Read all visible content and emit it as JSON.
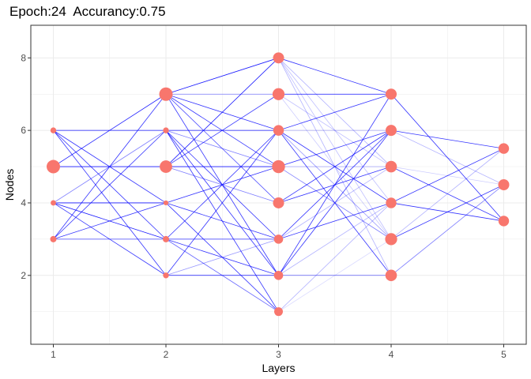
{
  "chart_data": {
    "type": "scatter",
    "title": "Epoch:24  Accurancy:0.75",
    "xlabel": "Layers",
    "ylabel": "Nodes",
    "xlim": [
      0.8,
      5.2
    ],
    "ylim": [
      0.1,
      8.9
    ],
    "x_ticks": [
      "1",
      "2",
      "3",
      "4",
      "5"
    ],
    "y_ticks": [
      "2",
      "4",
      "6",
      "8"
    ],
    "grid": true,
    "colors": {
      "node": "#F8766D",
      "edge": "#0000FF",
      "grid": "#ebebeb",
      "panel_border": "#333333"
    },
    "nodes": [
      {
        "layer": 1,
        "node": 3,
        "size": 0.25
      },
      {
        "layer": 1,
        "node": 4,
        "size": 0.15
      },
      {
        "layer": 1,
        "node": 5,
        "size": 1.0
      },
      {
        "layer": 1,
        "node": 6,
        "size": 0.2
      },
      {
        "layer": 2,
        "node": 2,
        "size": 0.2
      },
      {
        "layer": 2,
        "node": 3,
        "size": 0.25
      },
      {
        "layer": 2,
        "node": 4,
        "size": 0.1
      },
      {
        "layer": 2,
        "node": 5,
        "size": 0.9
      },
      {
        "layer": 2,
        "node": 6,
        "size": 0.2
      },
      {
        "layer": 2,
        "node": 7,
        "size": 1.0
      },
      {
        "layer": 3,
        "node": 1,
        "size": 0.5
      },
      {
        "layer": 3,
        "node": 2,
        "size": 0.55
      },
      {
        "layer": 3,
        "node": 3,
        "size": 0.55
      },
      {
        "layer": 3,
        "node": 4,
        "size": 0.75
      },
      {
        "layer": 3,
        "node": 5,
        "size": 0.95
      },
      {
        "layer": 3,
        "node": 6,
        "size": 0.7
      },
      {
        "layer": 3,
        "node": 7,
        "size": 0.85
      },
      {
        "layer": 3,
        "node": 8,
        "size": 0.75
      },
      {
        "layer": 4,
        "node": 2,
        "size": 0.8
      },
      {
        "layer": 4,
        "node": 3,
        "size": 0.85
      },
      {
        "layer": 4,
        "node": 4,
        "size": 0.7
      },
      {
        "layer": 4,
        "node": 5,
        "size": 0.8
      },
      {
        "layer": 4,
        "node": 6,
        "size": 0.75
      },
      {
        "layer": 4,
        "node": 7,
        "size": 0.75
      },
      {
        "layer": 5,
        "node": 3.5,
        "size": 0.7
      },
      {
        "layer": 5,
        "node": 4.5,
        "size": 0.75
      },
      {
        "layer": 5,
        "node": 5.5,
        "size": 0.7
      }
    ],
    "edges": [
      {
        "from": [
          1,
          6
        ],
        "to": [
          2,
          6
        ],
        "weight": 0.9
      },
      {
        "from": [
          1,
          6
        ],
        "to": [
          2,
          4
        ],
        "weight": 0.8
      },
      {
        "from": [
          1,
          6
        ],
        "to": [
          2,
          3
        ],
        "weight": 0.8
      },
      {
        "from": [
          1,
          6
        ],
        "to": [
          2,
          2
        ],
        "weight": 0.8
      },
      {
        "from": [
          1,
          5
        ],
        "to": [
          2,
          7
        ],
        "weight": 0.9
      },
      {
        "from": [
          1,
          5
        ],
        "to": [
          2,
          5
        ],
        "weight": 0.9
      },
      {
        "from": [
          1,
          4
        ],
        "to": [
          2,
          6
        ],
        "weight": 0.5
      },
      {
        "from": [
          1,
          4
        ],
        "to": [
          2,
          4
        ],
        "weight": 0.9
      },
      {
        "from": [
          1,
          4
        ],
        "to": [
          2,
          3
        ],
        "weight": 0.9
      },
      {
        "from": [
          1,
          4
        ],
        "to": [
          2,
          2
        ],
        "weight": 0.8
      },
      {
        "from": [
          1,
          3
        ],
        "to": [
          2,
          7
        ],
        "weight": 0.8
      },
      {
        "from": [
          1,
          3
        ],
        "to": [
          2,
          6
        ],
        "weight": 0.8
      },
      {
        "from": [
          1,
          3
        ],
        "to": [
          2,
          4
        ],
        "weight": 0.8
      },
      {
        "from": [
          1,
          3
        ],
        "to": [
          2,
          3
        ],
        "weight": 0.7
      },
      {
        "from": [
          2,
          7
        ],
        "to": [
          3,
          8
        ],
        "weight": 0.9
      },
      {
        "from": [
          2,
          7
        ],
        "to": [
          3,
          7
        ],
        "weight": 0.5
      },
      {
        "from": [
          2,
          7
        ],
        "to": [
          3,
          6
        ],
        "weight": 0.8
      },
      {
        "from": [
          2,
          7
        ],
        "to": [
          3,
          5
        ],
        "weight": 0.8
      },
      {
        "from": [
          2,
          7
        ],
        "to": [
          3,
          4
        ],
        "weight": 0.7
      },
      {
        "from": [
          2,
          7
        ],
        "to": [
          3,
          2
        ],
        "weight": 0.8
      },
      {
        "from": [
          2,
          6
        ],
        "to": [
          3,
          6
        ],
        "weight": 0.9
      },
      {
        "from": [
          2,
          6
        ],
        "to": [
          3,
          5
        ],
        "weight": 0.5
      },
      {
        "from": [
          2,
          6
        ],
        "to": [
          3,
          3
        ],
        "weight": 0.8
      },
      {
        "from": [
          2,
          6
        ],
        "to": [
          3,
          2
        ],
        "weight": 0.8
      },
      {
        "from": [
          2,
          6
        ],
        "to": [
          3,
          1
        ],
        "weight": 0.8
      },
      {
        "from": [
          2,
          5
        ],
        "to": [
          3,
          8
        ],
        "weight": 0.9
      },
      {
        "from": [
          2,
          5
        ],
        "to": [
          3,
          7
        ],
        "weight": 0.8
      },
      {
        "from": [
          2,
          5
        ],
        "to": [
          3,
          5
        ],
        "weight": 0.9
      },
      {
        "from": [
          2,
          5
        ],
        "to": [
          3,
          4
        ],
        "weight": 0.5
      },
      {
        "from": [
          2,
          4
        ],
        "to": [
          3,
          5
        ],
        "weight": 0.8
      },
      {
        "from": [
          2,
          4
        ],
        "to": [
          3,
          3
        ],
        "weight": 0.8
      },
      {
        "from": [
          2,
          4
        ],
        "to": [
          3,
          1
        ],
        "weight": 0.8
      },
      {
        "from": [
          2,
          3
        ],
        "to": [
          3,
          6
        ],
        "weight": 0.8
      },
      {
        "from": [
          2,
          3
        ],
        "to": [
          3,
          3
        ],
        "weight": 0.8
      },
      {
        "from": [
          2,
          3
        ],
        "to": [
          3,
          2
        ],
        "weight": 0.8
      },
      {
        "from": [
          2,
          3
        ],
        "to": [
          3,
          1
        ],
        "weight": 0.6
      },
      {
        "from": [
          2,
          2
        ],
        "to": [
          3,
          6
        ],
        "weight": 0.8
      },
      {
        "from": [
          2,
          2
        ],
        "to": [
          3,
          3
        ],
        "weight": 0.4
      },
      {
        "from": [
          2,
          2
        ],
        "to": [
          3,
          2
        ],
        "weight": 0.9
      },
      {
        "from": [
          3,
          8
        ],
        "to": [
          4,
          7
        ],
        "weight": 0.8
      },
      {
        "from": [
          3,
          8
        ],
        "to": [
          4,
          5
        ],
        "weight": 0.3
      },
      {
        "from": [
          3,
          8
        ],
        "to": [
          4,
          4
        ],
        "weight": 0.25
      },
      {
        "from": [
          3,
          8
        ],
        "to": [
          4,
          3
        ],
        "weight": 0.25
      },
      {
        "from": [
          3,
          8
        ],
        "to": [
          4,
          2
        ],
        "weight": 0.3
      },
      {
        "from": [
          3,
          7
        ],
        "to": [
          4,
          7
        ],
        "weight": 0.9
      },
      {
        "from": [
          3,
          7
        ],
        "to": [
          4,
          5
        ],
        "weight": 0.25
      },
      {
        "from": [
          3,
          7
        ],
        "to": [
          4,
          3
        ],
        "weight": 0.2
      },
      {
        "from": [
          3,
          6
        ],
        "to": [
          4,
          7
        ],
        "weight": 0.8
      },
      {
        "from": [
          3,
          6
        ],
        "to": [
          4,
          6
        ],
        "weight": 0.3
      },
      {
        "from": [
          3,
          6
        ],
        "to": [
          4,
          4
        ],
        "weight": 0.8
      },
      {
        "from": [
          3,
          6
        ],
        "to": [
          4,
          3
        ],
        "weight": 0.4
      },
      {
        "from": [
          3,
          6
        ],
        "to": [
          4,
          2
        ],
        "weight": 0.8
      },
      {
        "from": [
          3,
          5
        ],
        "to": [
          4,
          6
        ],
        "weight": 0.8
      },
      {
        "from": [
          3,
          5
        ],
        "to": [
          4,
          5
        ],
        "weight": 0.3
      },
      {
        "from": [
          3,
          5
        ],
        "to": [
          4,
          3
        ],
        "weight": 0.5
      },
      {
        "from": [
          3,
          4
        ],
        "to": [
          4,
          5
        ],
        "weight": 0.8
      },
      {
        "from": [
          3,
          4
        ],
        "to": [
          4,
          6
        ],
        "weight": 0.8
      },
      {
        "from": [
          3,
          3
        ],
        "to": [
          4,
          6
        ],
        "weight": 0.8
      },
      {
        "from": [
          3,
          3
        ],
        "to": [
          4,
          4
        ],
        "weight": 0.8
      },
      {
        "from": [
          3,
          3
        ],
        "to": [
          4,
          5
        ],
        "weight": 0.3
      },
      {
        "from": [
          3,
          2
        ],
        "to": [
          4,
          7
        ],
        "weight": 0.8
      },
      {
        "from": [
          3,
          2
        ],
        "to": [
          4,
          6
        ],
        "weight": 0.8
      },
      {
        "from": [
          3,
          2
        ],
        "to": [
          4,
          2
        ],
        "weight": 0.6
      },
      {
        "from": [
          3,
          2
        ],
        "to": [
          4,
          4
        ],
        "weight": 0.3
      },
      {
        "from": [
          3,
          1
        ],
        "to": [
          4,
          4
        ],
        "weight": 0.3
      },
      {
        "from": [
          3,
          1
        ],
        "to": [
          4,
          3
        ],
        "weight": 0.15
      },
      {
        "from": [
          4,
          7
        ],
        "to": [
          5,
          3.5
        ],
        "weight": 0.8
      },
      {
        "from": [
          4,
          6
        ],
        "to": [
          5,
          5.5
        ],
        "weight": 0.8
      },
      {
        "from": [
          4,
          6
        ],
        "to": [
          5,
          4.5
        ],
        "weight": 0.3
      },
      {
        "from": [
          4,
          5
        ],
        "to": [
          5,
          3.5
        ],
        "weight": 0.8
      },
      {
        "from": [
          4,
          5
        ],
        "to": [
          5,
          4.5
        ],
        "weight": 0.2
      },
      {
        "from": [
          4,
          4
        ],
        "to": [
          5,
          5.5
        ],
        "weight": 0.8
      },
      {
        "from": [
          4,
          4
        ],
        "to": [
          5,
          3.5
        ],
        "weight": 0.8
      },
      {
        "from": [
          4,
          3
        ],
        "to": [
          5,
          4.5
        ],
        "weight": 0.8
      },
      {
        "from": [
          4,
          3
        ],
        "to": [
          5,
          5.5
        ],
        "weight": 0.3
      },
      {
        "from": [
          4,
          2
        ],
        "to": [
          5,
          4.5
        ],
        "weight": 0.5
      }
    ]
  }
}
